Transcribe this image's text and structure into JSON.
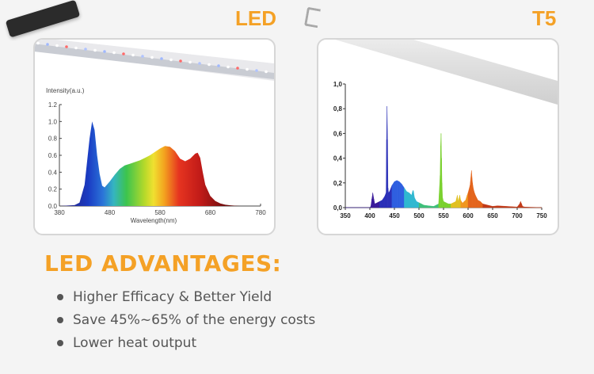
{
  "labels": {
    "led": "LED",
    "t5": "T5"
  },
  "advantages": {
    "title": "LED ADVANTAGES:",
    "items": [
      "Higher Efficacy & Better Yield",
      "Save 45%~65% of the energy costs",
      "Lower heat output"
    ]
  },
  "colors": {
    "accent": "#f4a126",
    "bullet": "#555555"
  },
  "chart_data": [
    {
      "type": "area",
      "ylabel": "Intensity(a.u.)",
      "xlabel": "Wavelength(nm)",
      "xlim": [
        380,
        780
      ],
      "ylim": [
        0,
        1.2
      ],
      "x_ticks": [
        "380",
        "480",
        "580",
        "680",
        "780"
      ],
      "y_ticks": [
        "0.0",
        "0.2",
        "0.4",
        "0.6",
        "0.8",
        "1.0",
        "1.2"
      ],
      "x": [
        380,
        410,
        420,
        430,
        440,
        445,
        450,
        455,
        460,
        465,
        470,
        480,
        490,
        500,
        510,
        520,
        530,
        540,
        550,
        560,
        570,
        580,
        590,
        600,
        610,
        620,
        630,
        640,
        650,
        655,
        660,
        665,
        670,
        680,
        690,
        700,
        710,
        720,
        730,
        740
      ],
      "y": [
        0,
        0.01,
        0.04,
        0.25,
        0.8,
        1.0,
        0.9,
        0.6,
        0.38,
        0.24,
        0.22,
        0.29,
        0.37,
        0.44,
        0.48,
        0.5,
        0.52,
        0.54,
        0.57,
        0.6,
        0.64,
        0.68,
        0.71,
        0.7,
        0.65,
        0.56,
        0.53,
        0.56,
        0.62,
        0.63,
        0.57,
        0.4,
        0.25,
        0.12,
        0.06,
        0.03,
        0.015,
        0.008,
        0.004,
        0
      ]
    },
    {
      "type": "line",
      "ylabel": "",
      "xlabel": "",
      "xlim": [
        350,
        750
      ],
      "ylim": [
        0,
        1.0
      ],
      "x_ticks": [
        "350",
        "400",
        "450",
        "500",
        "550",
        "600",
        "650",
        "700",
        "750"
      ],
      "y_ticks": [
        "0,0",
        "0,2",
        "0,4",
        "0,6",
        "0,8",
        "1,0"
      ],
      "x": [
        350,
        400,
        402,
        404,
        406,
        408,
        410,
        415,
        420,
        425,
        430,
        433,
        434,
        435,
        436,
        437,
        438,
        440,
        445,
        450,
        455,
        460,
        465,
        470,
        475,
        480,
        485,
        487,
        488,
        489,
        490,
        491,
        495,
        500,
        505,
        510,
        520,
        530,
        540,
        543,
        544,
        545,
        546,
        547,
        548,
        550,
        555,
        560,
        565,
        570,
        575,
        578,
        580,
        583,
        585,
        588,
        590,
        592,
        595,
        598,
        600,
        604,
        607,
        609,
        611,
        613,
        615,
        620,
        625,
        630,
        650,
        660,
        700,
        705,
        707,
        709,
        711,
        715,
        750
      ],
      "y": [
        0,
        0,
        0.01,
        0.07,
        0.12,
        0.07,
        0.03,
        0.04,
        0.05,
        0.06,
        0.09,
        0.12,
        0.55,
        0.82,
        0.55,
        0.16,
        0.12,
        0.13,
        0.18,
        0.21,
        0.22,
        0.21,
        0.19,
        0.16,
        0.13,
        0.12,
        0.1,
        0.13,
        0.14,
        0.13,
        0.1,
        0.08,
        0.05,
        0.04,
        0.03,
        0.02,
        0.015,
        0.01,
        0.03,
        0.26,
        0.5,
        0.6,
        0.4,
        0.2,
        0.08,
        0.05,
        0.04,
        0.03,
        0.03,
        0.04,
        0.05,
        0.1,
        0.05,
        0.1,
        0.06,
        0.04,
        0.04,
        0.05,
        0.06,
        0.1,
        0.12,
        0.18,
        0.3,
        0.2,
        0.15,
        0.12,
        0.1,
        0.06,
        0.05,
        0.03,
        0.01,
        0.015,
        0.005,
        0.03,
        0.05,
        0.03,
        0.01,
        0.005,
        0
      ]
    }
  ]
}
